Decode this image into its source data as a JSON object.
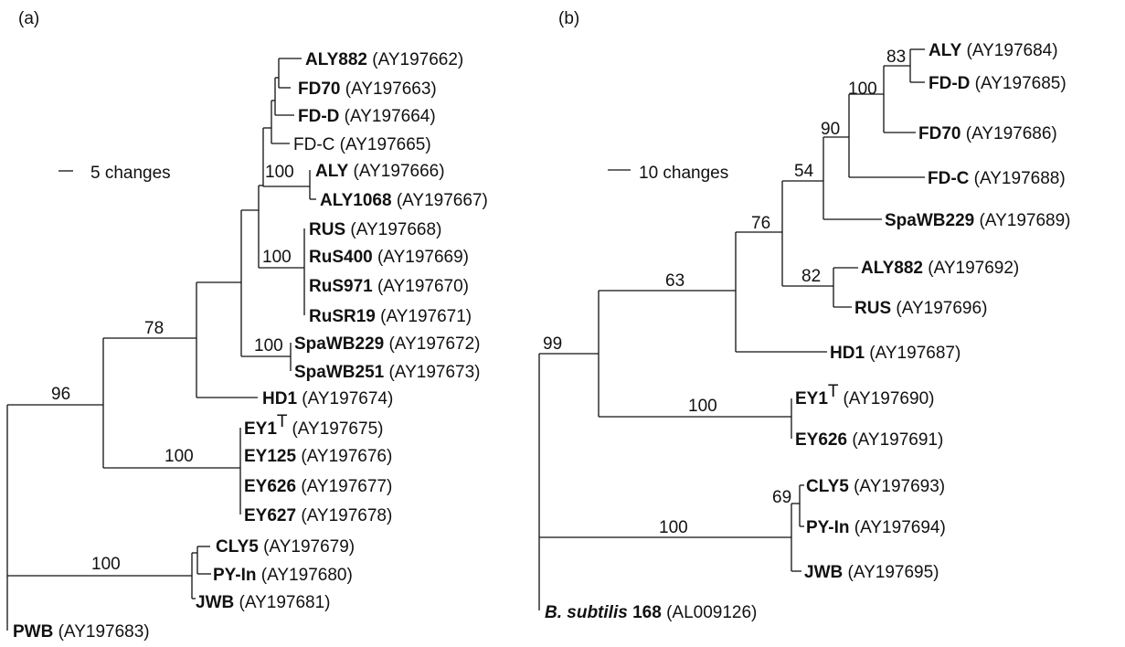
{
  "panels": {
    "a": {
      "label": "(a)",
      "scale_label": "5 changes",
      "taxa": {
        "aly882": {
          "name": "ALY882",
          "acc": "(AY197662)"
        },
        "fd70": {
          "name": "FD70",
          "acc": "(AY197663)"
        },
        "fdd": {
          "name": "FD-D",
          "acc": "(AY197664)"
        },
        "fdc": {
          "name": "FD-C",
          "acc": "(AY197665)"
        },
        "aly": {
          "name": "ALY",
          "acc": "(AY197666)"
        },
        "aly1068": {
          "name": "ALY1068",
          "acc": "(AY197667)"
        },
        "rus": {
          "name": "RUS",
          "acc": "(AY197668)"
        },
        "rus400": {
          "name": "RuS400",
          "acc": "(AY197669)"
        },
        "rus971": {
          "name": "RuS971",
          "acc": "(AY197670)"
        },
        "rusr19": {
          "name": "RuSR19",
          "acc": "(AY197671)"
        },
        "spawb229": {
          "name": "SpaWB229",
          "acc": "(AY197672)"
        },
        "spawb251": {
          "name": "SpaWB251",
          "acc": "(AY197673)"
        },
        "hd1": {
          "name": "HD1",
          "acc": "(AY197674)"
        },
        "ey1": {
          "name": "EY1",
          "sup": "T",
          "acc": "(AY197675)"
        },
        "ey125": {
          "name": "EY125",
          "acc": "(AY197676)"
        },
        "ey626": {
          "name": "EY626",
          "acc": "(AY197677)"
        },
        "ey627": {
          "name": "EY627",
          "acc": "(AY197678)"
        },
        "cly5": {
          "name": "CLY5",
          "acc": "(AY197679)"
        },
        "pyin": {
          "name": "PY-In",
          "acc": "(AY197680)"
        },
        "jwb": {
          "name": "JWB",
          "acc": "(AY197681)"
        },
        "pwb": {
          "name": "PWB",
          "acc": "(AY197683)"
        }
      },
      "bootstrap": {
        "aly_pair": "100",
        "rus_clade": "100",
        "spawb_pair": "100",
        "main_clade": "78",
        "ingroup": "96",
        "ey_clade": "100",
        "cly_clade": "100"
      }
    },
    "b": {
      "label": "(b)",
      "scale_label": "10 changes",
      "taxa": {
        "aly": {
          "name": "ALY",
          "acc": "(AY197684)"
        },
        "fdd": {
          "name": "FD-D",
          "acc": "(AY197685)"
        },
        "fd70": {
          "name": "FD70",
          "acc": "(AY197686)"
        },
        "fdc": {
          "name": "FD-C",
          "acc": "(AY197688)"
        },
        "spawb229": {
          "name": "SpaWB229",
          "acc": "(AY197689)"
        },
        "aly882": {
          "name": "ALY882",
          "acc": "(AY197692)"
        },
        "rus": {
          "name": "RUS",
          "acc": "(AY197696)"
        },
        "hd1": {
          "name": "HD1",
          "acc": "(AY197687)"
        },
        "ey1": {
          "name": "EY1",
          "sup": "T",
          "acc": "(AY197690)"
        },
        "ey626": {
          "name": "EY626",
          "acc": "(AY197691)"
        },
        "cly5": {
          "name": "CLY5",
          "acc": "(AY197693)"
        },
        "pyin": {
          "name": "PY-In",
          "acc": "(AY197694)"
        },
        "jwb": {
          "name": "JWB",
          "acc": "(AY197695)"
        },
        "bsub_italic": "B. subtilis",
        "bsub_strain": "168",
        "bsub_acc": "(AL009126)"
      },
      "bootstrap": {
        "aly_fdd": "83",
        "fd70_node": "100",
        "fdc_node": "90",
        "spawb_node": "54",
        "aly882_rus": "82",
        "main_clade": "76",
        "with_hd1": "63",
        "ey_clade": "100",
        "ingroup": "99",
        "cly5_pyin": "69",
        "cly_clade": "100"
      }
    }
  }
}
